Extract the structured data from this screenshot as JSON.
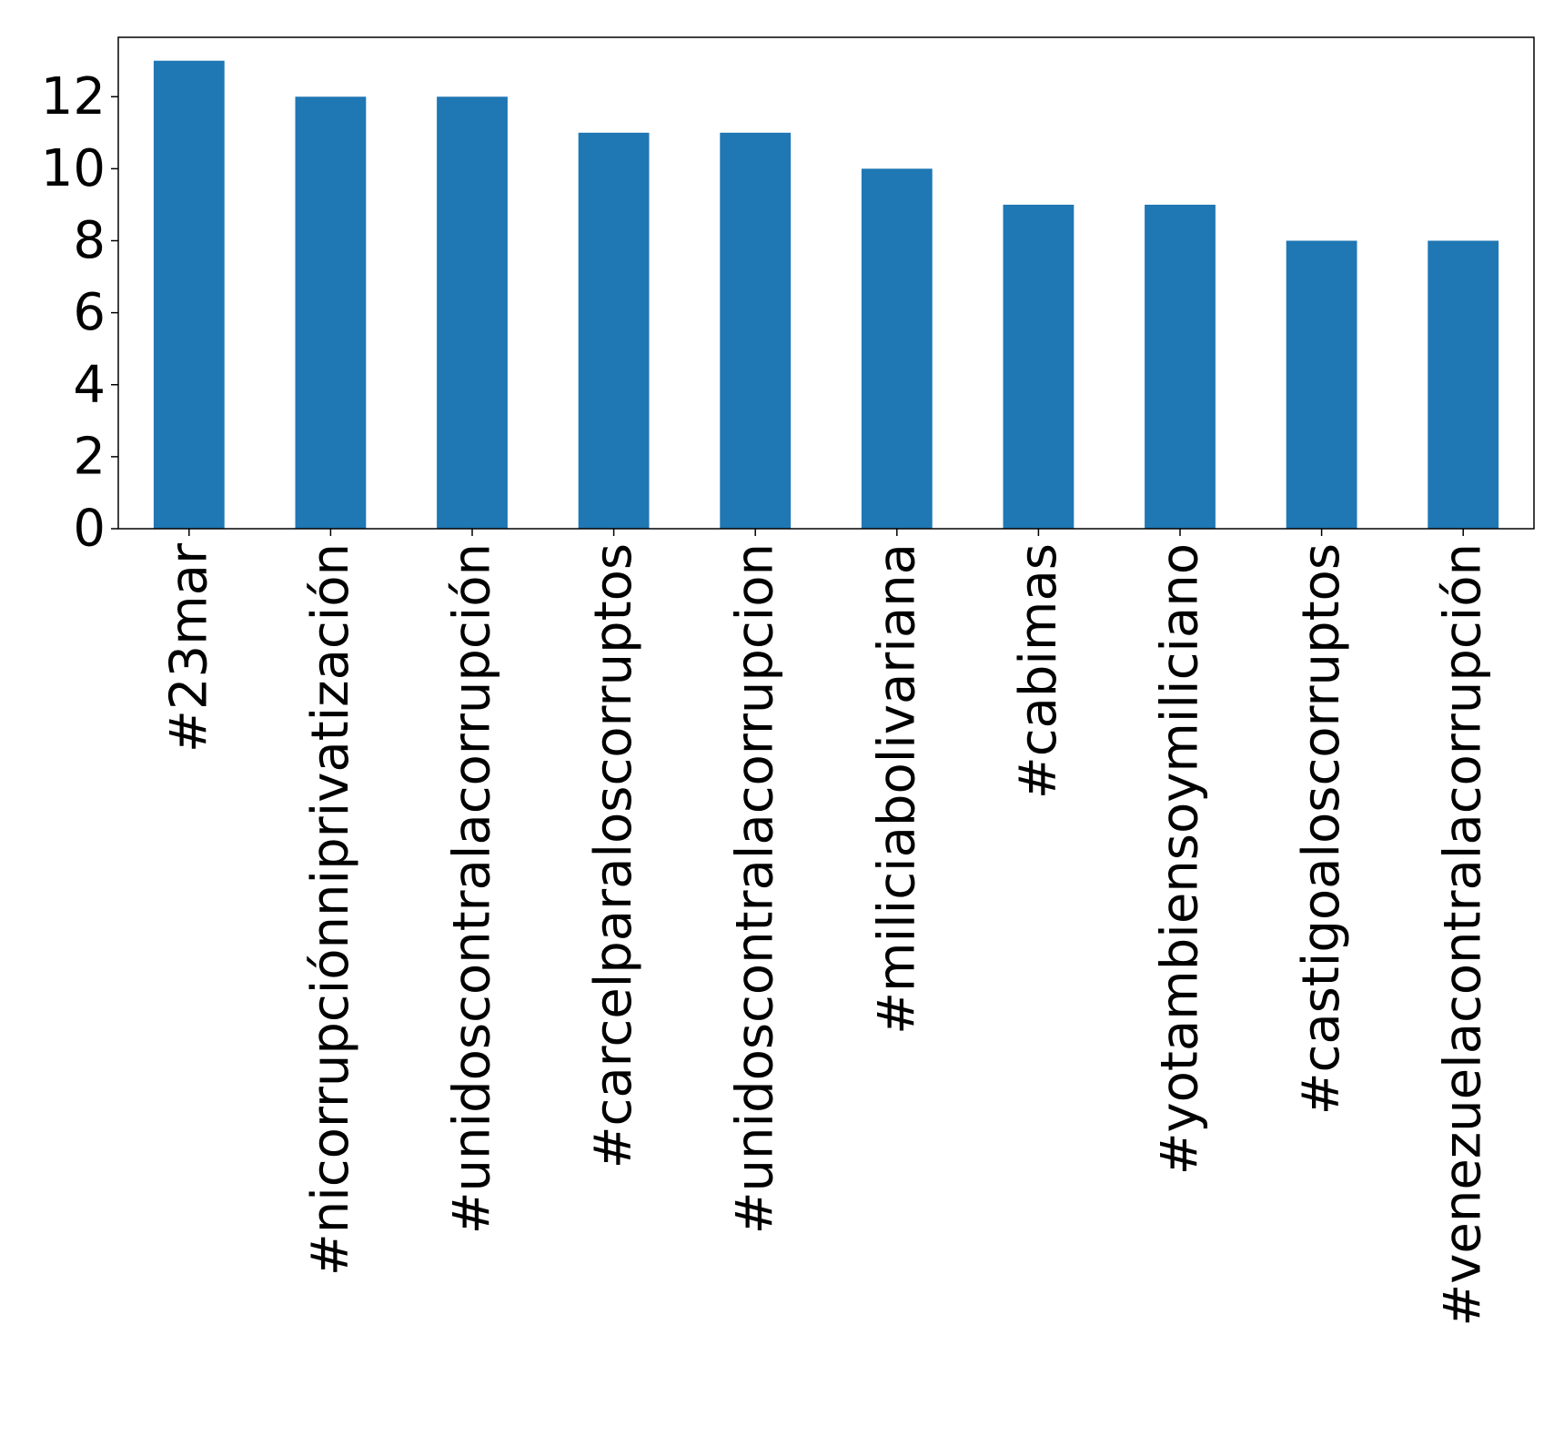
{
  "chart_data": {
    "type": "bar",
    "title": "",
    "xlabel": "",
    "ylabel": "",
    "categories": [
      "#23mar",
      "#nicorrupciónniprivatización",
      "#unidoscontralacorrupción",
      "#carcelparaloscorruptos",
      "#unidoscontralacorrupcion",
      "#miliciabolivariana",
      "#cabimas",
      "#yotambiensoymiliciano",
      "#castigoaloscorruptos",
      "#venezuelacontralacorrupción"
    ],
    "values": [
      13,
      12,
      12,
      11,
      11,
      10,
      9,
      9,
      8,
      8
    ],
    "ylim": [
      0,
      13.65
    ],
    "yticks": [
      0,
      2,
      4,
      6,
      8,
      10,
      12
    ],
    "grid": false,
    "legend": "none",
    "colors": {
      "bar": "#1f77b4",
      "axis": "#000000",
      "background": "#ffffff"
    }
  }
}
